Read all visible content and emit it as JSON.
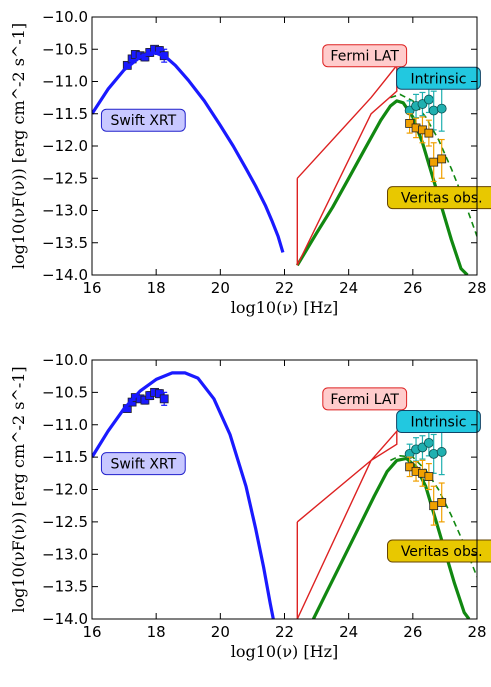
{
  "chart_data": [
    {
      "type": "scatter",
      "xlabel": "log10(ν) [Hz]",
      "ylabel": "log10(νF(ν)) [erg cm^-2 s^-1]",
      "xlim": [
        16,
        28
      ],
      "ylim": [
        -14.0,
        -10.0
      ],
      "x_ticks": [
        "16",
        "18",
        "20",
        "22",
        "24",
        "26",
        "28"
      ],
      "y_ticks": [
        "−10.0",
        "−10.5",
        "−11.0",
        "−11.5",
        "−12.0",
        "−12.5",
        "−13.0",
        "−13.5",
        "−14.0"
      ],
      "grid": false,
      "annotations": [
        {
          "text": "Swift XRT",
          "x": 17.6,
          "y": -11.6,
          "bg": "#c8c8ff",
          "border": "#2222cc"
        },
        {
          "text": "Fermi LAT",
          "x": 24.5,
          "y": -10.6,
          "bg": "#ffcccc",
          "border": "#dd2222"
        },
        {
          "text": "Intrinsic",
          "x": 26.8,
          "y": -10.95,
          "bg": "#22c8e0",
          "border": "#114466"
        },
        {
          "text": "Veritas obs.",
          "x": 26.9,
          "y": -12.8,
          "bg": "#e8c800",
          "border": "#664400"
        }
      ],
      "series": [
        {
          "type": "data",
          "color": "#1a1aff",
          "marker": "square",
          "x": [
            17.1,
            17.25,
            17.35,
            17.5,
            17.65,
            17.8,
            17.95,
            18.1,
            18.25
          ],
          "y": [
            -10.75,
            -10.65,
            -10.58,
            -10.6,
            -10.62,
            -10.55,
            -10.5,
            -10.52,
            -10.6
          ],
          "yerr": [
            0.05,
            0.05,
            0.05,
            0.05,
            0.06,
            0.06,
            0.05,
            0.06,
            0.1
          ]
        },
        {
          "type": "model",
          "color": "#1a1aff",
          "style": "solid",
          "x": [
            16.0,
            16.5,
            17.0,
            17.5,
            17.8,
            18.0,
            18.3,
            18.6,
            19.0,
            19.5,
            20.0,
            20.4,
            20.8,
            21.1,
            21.4,
            21.6,
            21.8,
            21.95
          ],
          "y": [
            -11.5,
            -11.12,
            -10.82,
            -10.62,
            -10.56,
            -10.56,
            -10.62,
            -10.75,
            -10.98,
            -11.3,
            -11.68,
            -12.0,
            -12.35,
            -12.62,
            -12.92,
            -13.15,
            -13.4,
            -13.65
          ]
        },
        {
          "type": "model",
          "color": "#118811",
          "style": "solid",
          "name_hint": "intrinsic",
          "x": [
            22.4,
            23.0,
            23.5,
            24.0,
            24.5,
            25.0,
            25.3,
            25.5,
            25.7,
            26.0,
            26.3,
            26.6,
            26.9,
            27.2,
            27.5,
            27.7
          ],
          "y": [
            -13.85,
            -13.35,
            -12.95,
            -12.5,
            -12.05,
            -11.6,
            -11.38,
            -11.3,
            -11.33,
            -11.55,
            -11.95,
            -12.45,
            -12.95,
            -13.45,
            -13.9,
            -14.0
          ]
        },
        {
          "type": "model",
          "color": "#118811",
          "style": "dashed",
          "x": [
            25.3,
            25.6,
            26.0,
            26.4,
            26.8,
            27.2,
            27.6,
            28.0
          ],
          "y": [
            -11.25,
            -11.2,
            -11.3,
            -11.55,
            -11.9,
            -12.35,
            -12.85,
            -13.4
          ]
        },
        {
          "type": "data",
          "color": "#20b0b0",
          "marker": "circle",
          "x": [
            25.9,
            26.1,
            26.3,
            26.5,
            26.65,
            26.9
          ],
          "y": [
            -11.45,
            -11.38,
            -11.35,
            -11.28,
            -11.45,
            -11.42
          ],
          "yerr": [
            0.15,
            0.18,
            0.18,
            0.2,
            0.3,
            0.35
          ]
        },
        {
          "type": "data",
          "color": "#f0a000",
          "marker": "square",
          "x": [
            25.9,
            26.1,
            26.3,
            26.5,
            26.65,
            26.9
          ],
          "y": [
            -11.65,
            -11.72,
            -11.75,
            -11.8,
            -12.25,
            -12.2
          ],
          "yerr": [
            0.15,
            0.15,
            0.2,
            0.2,
            0.3,
            0.3
          ]
        },
        {
          "type": "butterfly",
          "color": "#dd2222",
          "x": [
            22.4,
            22.4,
            24.7,
            25.5,
            25.5,
            24.7,
            22.4
          ],
          "y": [
            -12.5,
            -13.85,
            -11.5,
            -11.15,
            -10.75,
            -11.25,
            -12.5
          ]
        }
      ]
    },
    {
      "type": "scatter",
      "xlabel": "log10(ν) [Hz]",
      "ylabel": "log10(νF(ν)) [erg cm^-2 s^-1]",
      "xlim": [
        16,
        28
      ],
      "ylim": [
        -14.0,
        -10.0
      ],
      "x_ticks": [
        "16",
        "18",
        "20",
        "22",
        "24",
        "26",
        "28"
      ],
      "y_ticks": [
        "−10.0",
        "−10.5",
        "−11.0",
        "−11.5",
        "−12.0",
        "−12.5",
        "−13.0",
        "−13.5",
        "−14.0"
      ],
      "grid": false,
      "annotations": [
        {
          "text": "Swift XRT",
          "x": 17.6,
          "y": -11.6,
          "bg": "#c8c8ff",
          "border": "#2222cc"
        },
        {
          "text": "Fermi LAT",
          "x": 24.5,
          "y": -10.6,
          "bg": "#ffcccc",
          "border": "#dd2222"
        },
        {
          "text": "Intrinsic",
          "x": 26.8,
          "y": -10.95,
          "bg": "#22c8e0",
          "border": "#114466"
        },
        {
          "text": "Veritas obs.",
          "x": 26.9,
          "y": -12.95,
          "bg": "#e8c800",
          "border": "#664400"
        }
      ],
      "series": [
        {
          "type": "data",
          "color": "#1a1aff",
          "marker": "square",
          "x": [
            17.1,
            17.25,
            17.35,
            17.5,
            17.65,
            17.8,
            17.95,
            18.1,
            18.25
          ],
          "y": [
            -10.75,
            -10.65,
            -10.58,
            -10.6,
            -10.62,
            -10.55,
            -10.5,
            -10.52,
            -10.6
          ],
          "yerr": [
            0.05,
            0.05,
            0.05,
            0.05,
            0.06,
            0.06,
            0.05,
            0.06,
            0.1
          ]
        },
        {
          "type": "model",
          "color": "#1a1aff",
          "style": "solid",
          "x": [
            16.0,
            16.5,
            17.0,
            17.5,
            18.0,
            18.5,
            18.9,
            19.3,
            19.8,
            20.3,
            20.8,
            21.1,
            21.35,
            21.55,
            21.65
          ],
          "y": [
            -11.5,
            -11.1,
            -10.75,
            -10.48,
            -10.3,
            -10.2,
            -10.2,
            -10.28,
            -10.6,
            -11.15,
            -11.95,
            -12.6,
            -13.2,
            -13.75,
            -14.0
          ]
        },
        {
          "type": "model",
          "color": "#118811",
          "style": "solid",
          "x": [
            22.9,
            23.3,
            23.8,
            24.3,
            24.8,
            25.2,
            25.5,
            25.8,
            26.1,
            26.4,
            26.7,
            27.0,
            27.3,
            27.6,
            27.75
          ],
          "y": [
            -14.0,
            -13.6,
            -13.1,
            -12.6,
            -12.1,
            -11.72,
            -11.55,
            -11.52,
            -11.65,
            -11.95,
            -12.45,
            -12.95,
            -13.45,
            -13.9,
            -14.0
          ]
        },
        {
          "type": "model",
          "color": "#118811",
          "style": "dashed",
          "x": [
            25.3,
            25.6,
            26.0,
            26.4,
            26.8,
            27.2,
            27.6,
            28.0
          ],
          "y": [
            -11.55,
            -11.48,
            -11.5,
            -11.7,
            -12.0,
            -12.4,
            -12.85,
            -13.35
          ]
        },
        {
          "type": "data",
          "color": "#20b0b0",
          "marker": "circle",
          "x": [
            25.9,
            26.1,
            26.3,
            26.5,
            26.65,
            26.9
          ],
          "y": [
            -11.45,
            -11.38,
            -11.35,
            -11.28,
            -11.45,
            -11.42
          ],
          "yerr": [
            0.15,
            0.18,
            0.18,
            0.2,
            0.3,
            0.35
          ]
        },
        {
          "type": "data",
          "color": "#f0a000",
          "marker": "square",
          "x": [
            25.9,
            26.1,
            26.3,
            26.5,
            26.65,
            26.9
          ],
          "y": [
            -11.65,
            -11.72,
            -11.75,
            -11.8,
            -12.25,
            -12.2
          ],
          "yerr": [
            0.15,
            0.15,
            0.2,
            0.2,
            0.3,
            0.3
          ]
        },
        {
          "type": "butterfly",
          "color": "#dd2222",
          "x": [
            22.4,
            22.4,
            24.7,
            25.5,
            25.5,
            24.7,
            22.4
          ],
          "y": [
            -12.5,
            -14.0,
            -11.55,
            -11.3,
            -11.1,
            -11.55,
            -12.5
          ]
        }
      ]
    }
  ]
}
